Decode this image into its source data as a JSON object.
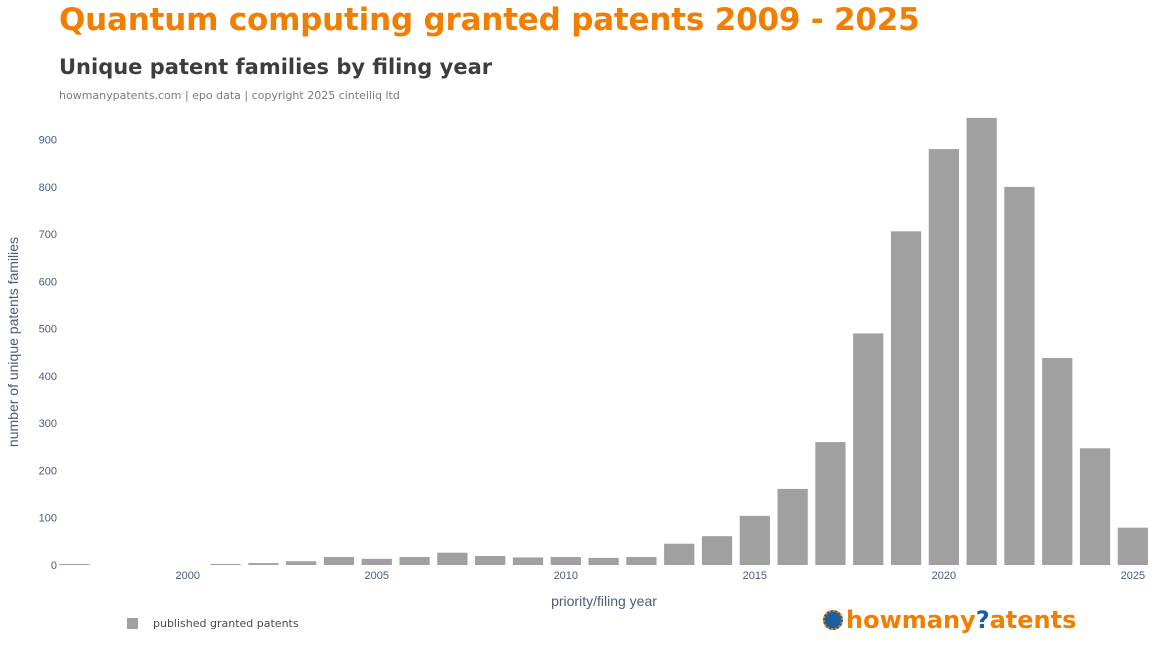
{
  "header": {
    "title": "Quantum computing granted patents 2009 - 2025",
    "subtitle": "Unique patent families by filing year",
    "source": "howmanypatents.com | epo data | copyright 2025 cintelliq ltd"
  },
  "legend": {
    "label": "published granted patents"
  },
  "logo": {
    "part1": "howmany",
    "part2": "?",
    "part3": "atents"
  },
  "colors": {
    "title": "#f07e00",
    "bar": "#a0a0a0",
    "axis_text": "#4a5a7a",
    "logo_blue": "#1a5fa0"
  },
  "chart_data": {
    "type": "bar",
    "title": "Quantum computing granted patents 2009 - 2025",
    "subtitle": "Unique patent families by filing year",
    "xlabel": "priority/filing year",
    "ylabel": "number of unique patents families",
    "x": [
      1997,
      2001,
      2002,
      2003,
      2004,
      2005,
      2006,
      2007,
      2008,
      2009,
      2010,
      2011,
      2012,
      2013,
      2014,
      2015,
      2016,
      2017,
      2018,
      2019,
      2020,
      2021,
      2022,
      2023,
      2024,
      2025
    ],
    "values": [
      1,
      2,
      4,
      8,
      17,
      13,
      17,
      26,
      19,
      16,
      17,
      15,
      17,
      45,
      61,
      104,
      161,
      260,
      490,
      706,
      880,
      946,
      800,
      438,
      247,
      79
    ],
    "xlim": [
      1996.7,
      2025.4
    ],
    "ylim": [
      0,
      950
    ],
    "y_ticks": [
      0,
      100,
      200,
      300,
      400,
      500,
      600,
      700,
      800,
      900
    ],
    "x_ticks": [
      2000,
      2005,
      2010,
      2015,
      2020,
      2025
    ],
    "series": [
      {
        "name": "published granted patents"
      }
    ],
    "grid": false,
    "legend_position": "bottom-left"
  }
}
